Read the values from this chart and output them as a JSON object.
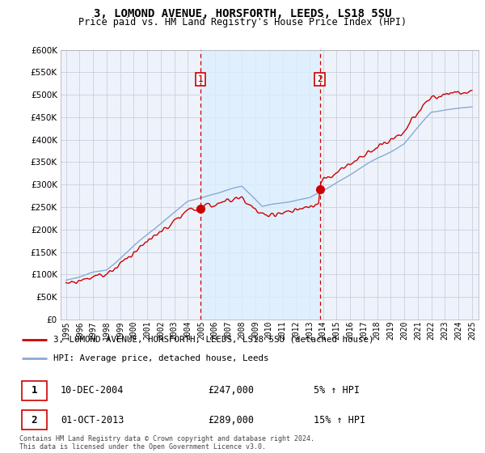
{
  "title": "3, LOMOND AVENUE, HORSFORTH, LEEDS, LS18 5SU",
  "subtitle": "Price paid vs. HM Land Registry's House Price Index (HPI)",
  "legend_line1": "3, LOMOND AVENUE, HORSFORTH, LEEDS, LS18 5SU (detached house)",
  "legend_line2": "HPI: Average price, detached house, Leeds",
  "sale1_date": "10-DEC-2004",
  "sale1_price": "£247,000",
  "sale1_hpi": "5% ↑ HPI",
  "sale2_date": "01-OCT-2013",
  "sale2_price": "£289,000",
  "sale2_hpi": "15% ↑ HPI",
  "footer": "Contains HM Land Registry data © Crown copyright and database right 2024.\nThis data is licensed under the Open Government Licence v3.0.",
  "red_color": "#cc0000",
  "blue_color": "#88aad4",
  "dashed_color": "#cc0000",
  "shade_color": "#ddeeff",
  "ylim": [
    0,
    600000
  ],
  "yticks": [
    0,
    50000,
    100000,
    150000,
    200000,
    250000,
    300000,
    350000,
    400000,
    450000,
    500000,
    550000,
    600000
  ],
  "sale1_x": 2004.917,
  "sale2_x": 2013.75,
  "xmin": 1995,
  "xmax": 2025,
  "background_color": "#ffffff",
  "plot_bg_color": "#eef3fb"
}
